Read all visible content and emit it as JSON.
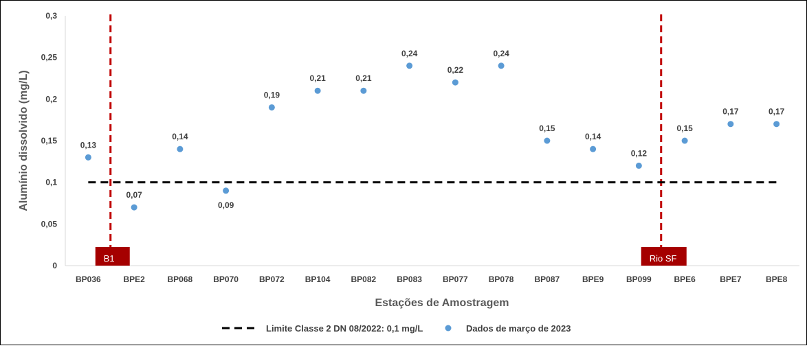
{
  "chart_data": {
    "type": "scatter",
    "categories": [
      "BP036",
      "BPE2",
      "BP068",
      "BP070",
      "BP072",
      "BP104",
      "BP082",
      "BP083",
      "BP077",
      "BP078",
      "BP087",
      "BPE9",
      "BP099",
      "BPE6",
      "BPE7",
      "BPE8"
    ],
    "series": [
      {
        "name": "Dados de março de 2023",
        "values": [
          0.13,
          0.07,
          0.14,
          0.09,
          0.19,
          0.21,
          0.21,
          0.24,
          0.22,
          0.24,
          0.15,
          0.14,
          0.12,
          0.15,
          0.17,
          0.17
        ],
        "labels": [
          "0,13",
          "0,07",
          "0,14",
          "0,09",
          "0,19",
          "0,21",
          "0,21",
          "0,24",
          "0,22",
          "0,24",
          "0,15",
          "0,14",
          "0,12",
          "0,15",
          "0,17",
          "0,17"
        ],
        "color": "#5B9BD5"
      }
    ],
    "reference_line": {
      "name": "Limite Classe 2 DN 08/2022: 0,1 mg/L",
      "value": 0.1,
      "color": "#000000",
      "style": "dashed"
    },
    "markers": [
      {
        "label": "B1",
        "between": [
          "BP036",
          "BPE2"
        ],
        "color": "#C00000",
        "box_color": "#A50000"
      },
      {
        "label": "Rio SF",
        "between": [
          "BP099",
          "BPE6"
        ],
        "color": "#C00000",
        "box_color": "#A50000"
      }
    ],
    "xlabel": "Estações de Amostragem",
    "ylabel": "Alumínio dissolvido (mg/L)",
    "ylim": [
      0,
      0.3
    ],
    "yticks": [
      "0",
      "0,05",
      "0,1",
      "0,15",
      "0,2",
      "0,25",
      "0,3"
    ],
    "ytick_values": [
      0,
      0.05,
      0.1,
      0.15,
      0.2,
      0.25,
      0.3
    ],
    "legend_position": "bottom",
    "grid": false
  }
}
